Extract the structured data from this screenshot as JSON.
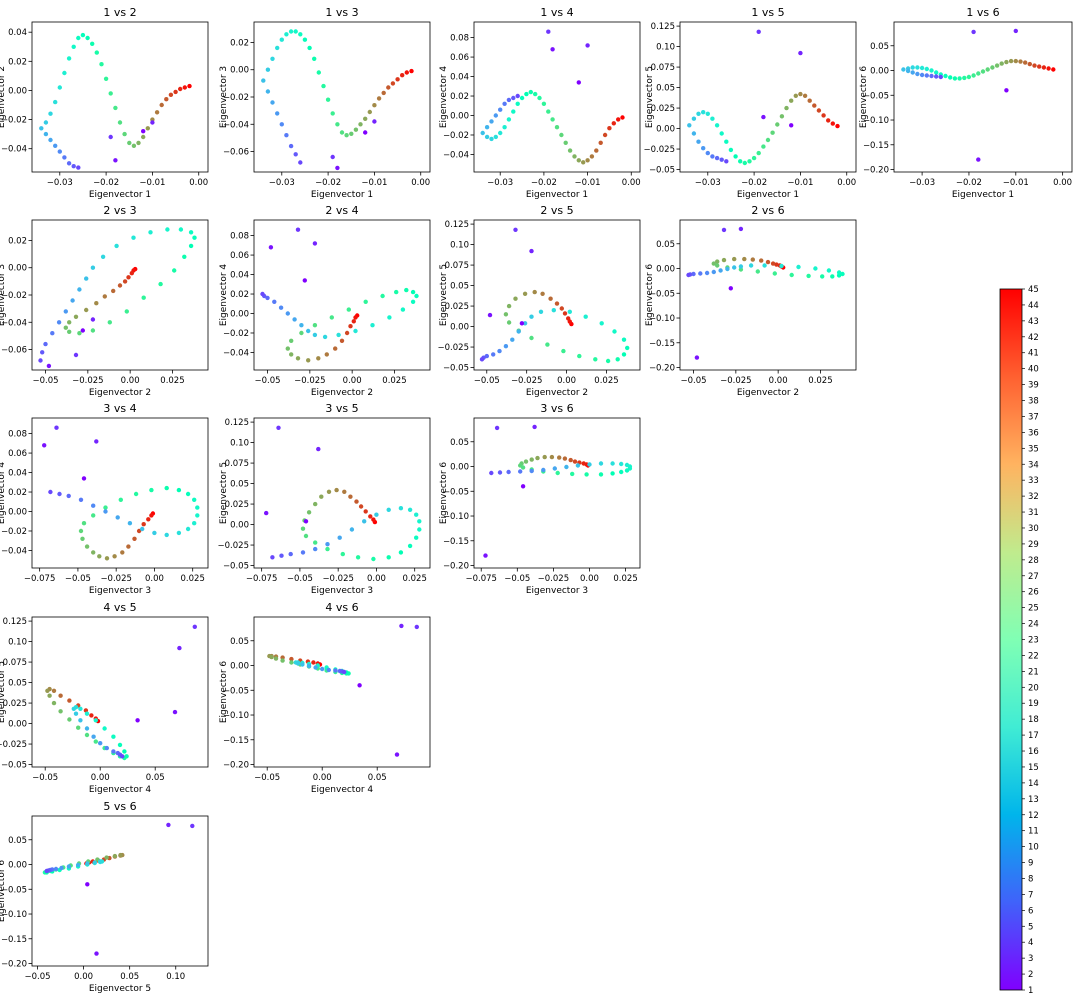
{
  "colors": {
    "colormap": "rainbow",
    "low": "#8000ff",
    "high": "#ff0000"
  },
  "colorbar": {
    "min": 1,
    "max": 45,
    "ticks": [
      1,
      2,
      3,
      4,
      5,
      6,
      7,
      8,
      9,
      10,
      11,
      12,
      13,
      14,
      15,
      16,
      17,
      18,
      19,
      20,
      21,
      22,
      23,
      24,
      25,
      26,
      27,
      28,
      29,
      30,
      31,
      32,
      33,
      34,
      35,
      36,
      37,
      38,
      39,
      40,
      41,
      42,
      43,
      44,
      45
    ]
  },
  "axes_info": [
    {
      "title": "1 vs 2",
      "xlabel": "Eigenvector 1",
      "ylabel": "Eigenvector 2",
      "xlim": [
        -0.036,
        0.002
      ],
      "ylim": [
        -0.056,
        0.047
      ],
      "xticks": [
        -0.03,
        -0.02,
        -0.01,
        0.0
      ],
      "yticks": [
        -0.04,
        -0.02,
        0.0,
        0.02,
        0.04
      ]
    },
    {
      "title": "1 vs 3",
      "xlabel": "Eigenvector 1",
      "ylabel": "Eigenvector 3",
      "xlim": [
        -0.036,
        0.002
      ],
      "ylim": [
        -0.075,
        0.035
      ],
      "xticks": [
        -0.03,
        -0.02,
        -0.01,
        0.0
      ],
      "yticks": [
        -0.06,
        -0.04,
        -0.02,
        0.0,
        0.02
      ]
    },
    {
      "title": "1 vs 4",
      "xlabel": "Eigenvector 1",
      "ylabel": "Eigenvector 4",
      "xlim": [
        -0.036,
        0.002
      ],
      "ylim": [
        -0.058,
        0.096
      ],
      "xticks": [
        -0.03,
        -0.02,
        -0.01,
        0.0
      ],
      "yticks": [
        -0.04,
        -0.02,
        0.0,
        0.02,
        0.04,
        0.06,
        0.08
      ]
    },
    {
      "title": "1 vs 5",
      "xlabel": "Eigenvector 1",
      "ylabel": "Eigenvector 5",
      "xlim": [
        -0.036,
        0.002
      ],
      "ylim": [
        -0.053,
        0.13
      ],
      "xticks": [
        -0.03,
        -0.02,
        -0.01,
        0.0
      ],
      "yticks": [
        -0.05,
        -0.025,
        0.0,
        0.025,
        0.05,
        0.075,
        0.1,
        0.125
      ]
    },
    {
      "title": "1 vs 6",
      "xlabel": "Eigenvector 1",
      "ylabel": "Eigenvector 6",
      "xlim": [
        -0.036,
        0.002
      ],
      "ylim": [
        -0.205,
        0.098
      ],
      "xticks": [
        -0.03,
        -0.02,
        -0.01,
        0.0
      ],
      "yticks": [
        -0.2,
        -0.15,
        -0.1,
        -0.05,
        0.0,
        0.05
      ]
    },
    {
      "title": "2 vs 3",
      "xlabel": "Eigenvector 2",
      "ylabel": "Eigenvector 3",
      "xlim": [
        -0.058,
        0.046
      ],
      "ylim": [
        -0.075,
        0.035
      ],
      "xticks": [
        -0.05,
        -0.025,
        0.0,
        0.025
      ],
      "yticks": [
        -0.06,
        -0.04,
        -0.02,
        0.0,
        0.02
      ]
    },
    {
      "title": "2 vs 4",
      "xlabel": "Eigenvector 2",
      "ylabel": "Eigenvector 4",
      "xlim": [
        -0.058,
        0.046
      ],
      "ylim": [
        -0.058,
        0.096
      ],
      "xticks": [
        -0.05,
        -0.025,
        0.0,
        0.025
      ],
      "yticks": [
        -0.04,
        -0.02,
        0.0,
        0.02,
        0.04,
        0.06,
        0.08
      ]
    },
    {
      "title": "2 vs 5",
      "xlabel": "Eigenvector 2",
      "ylabel": "Eigenvector 5",
      "xlim": [
        -0.058,
        0.046
      ],
      "ylim": [
        -0.053,
        0.13
      ],
      "xticks": [
        -0.05,
        -0.025,
        0.0,
        0.025
      ],
      "yticks": [
        -0.05,
        -0.025,
        0.0,
        0.025,
        0.05,
        0.075,
        0.1,
        0.125
      ]
    },
    {
      "title": "2 vs 6",
      "xlabel": "Eigenvector 2",
      "ylabel": "Eigenvector 6",
      "xlim": [
        -0.058,
        0.046
      ],
      "ylim": [
        -0.205,
        0.098
      ],
      "xticks": [
        -0.05,
        -0.025,
        0.0,
        0.025
      ],
      "yticks": [
        -0.2,
        -0.15,
        -0.1,
        -0.05,
        0.0,
        0.05
      ]
    },
    {
      "title": "3 vs 4",
      "xlabel": "Eigenvector 3",
      "ylabel": "Eigenvector 4",
      "xlim": [
        -0.08,
        0.035
      ],
      "ylim": [
        -0.058,
        0.096
      ],
      "xticks": [
        -0.075,
        -0.05,
        -0.025,
        0.0,
        0.025
      ],
      "yticks": [
        -0.04,
        -0.02,
        0.0,
        0.02,
        0.04,
        0.06,
        0.08
      ]
    },
    {
      "title": "3 vs 5",
      "xlabel": "Eigenvector 3",
      "ylabel": "Eigenvector 5",
      "xlim": [
        -0.08,
        0.035
      ],
      "ylim": [
        -0.053,
        0.13
      ],
      "xticks": [
        -0.075,
        -0.05,
        -0.025,
        0.0,
        0.025
      ],
      "yticks": [
        -0.05,
        -0.025,
        0.0,
        0.025,
        0.05,
        0.075,
        0.1,
        0.125
      ]
    },
    {
      "title": "3 vs 6",
      "xlabel": "Eigenvector 3",
      "ylabel": "Eigenvector 6",
      "xlim": [
        -0.08,
        0.035
      ],
      "ylim": [
        -0.205,
        0.098
      ],
      "xticks": [
        -0.075,
        -0.05,
        -0.025,
        0.0,
        0.025
      ],
      "yticks": [
        -0.2,
        -0.15,
        -0.1,
        -0.05,
        0.0,
        0.05
      ]
    },
    {
      "title": "4 vs 5",
      "xlabel": "Eigenvector 4",
      "ylabel": "Eigenvector 5",
      "xlim": [
        -0.062,
        0.098
      ],
      "ylim": [
        -0.053,
        0.13
      ],
      "xticks": [
        -0.05,
        0.0,
        0.05
      ],
      "yticks": [
        -0.05,
        -0.025,
        0.0,
        0.025,
        0.05,
        0.075,
        0.1,
        0.125
      ]
    },
    {
      "title": "4 vs 6",
      "xlabel": "Eigenvector 4",
      "ylabel": "Eigenvector 6",
      "xlim": [
        -0.062,
        0.098
      ],
      "ylim": [
        -0.205,
        0.098
      ],
      "xticks": [
        -0.05,
        0.0,
        0.05
      ],
      "yticks": [
        -0.2,
        -0.15,
        -0.1,
        -0.05,
        0.0,
        0.05
      ]
    },
    {
      "title": "5 vs 6",
      "xlabel": "Eigenvector 5",
      "ylabel": "Eigenvector 6",
      "xlim": [
        -0.056,
        0.135
      ],
      "ylim": [
        -0.205,
        0.098
      ],
      "xticks": [
        -0.05,
        0.0,
        0.05,
        0.1
      ],
      "yticks": [
        -0.2,
        -0.15,
        -0.1,
        -0.05,
        0.0,
        0.05
      ]
    }
  ],
  "chart_data": {
    "type": "scatter",
    "variables": [
      "Eigenvector 1",
      "Eigenvector 2",
      "Eigenvector 3",
      "Eigenvector 4",
      "Eigenvector 5",
      "Eigenvector 6"
    ],
    "color_variable_range": [
      1,
      45
    ],
    "note_points": "Each point is [e1, e2, e3, e4, e5, e6, color]; approximate representative samples read from the panels.",
    "points": [
      [
        -0.002,
        0.003,
        -0.001,
        -0.002,
        0.003,
        0.002,
        45
      ],
      [
        -0.003,
        0.002,
        -0.002,
        -0.004,
        0.006,
        0.004,
        44
      ],
      [
        -0.004,
        0.001,
        -0.004,
        -0.008,
        0.01,
        0.006,
        43
      ],
      [
        -0.005,
        -0.001,
        -0.007,
        -0.013,
        0.016,
        0.008,
        42
      ],
      [
        -0.006,
        -0.003,
        -0.01,
        -0.02,
        0.022,
        0.01,
        41
      ],
      [
        -0.007,
        -0.006,
        -0.013,
        -0.028,
        0.028,
        0.013,
        40
      ],
      [
        -0.008,
        -0.01,
        -0.017,
        -0.036,
        0.034,
        0.016,
        39
      ],
      [
        -0.009,
        -0.015,
        -0.021,
        -0.042,
        0.04,
        0.018,
        38
      ],
      [
        -0.01,
        -0.02,
        -0.026,
        -0.046,
        0.042,
        0.019,
        37
      ],
      [
        -0.011,
        -0.026,
        -0.031,
        -0.048,
        0.04,
        0.019,
        36
      ],
      [
        -0.012,
        -0.032,
        -0.036,
        -0.046,
        0.034,
        0.017,
        35
      ],
      [
        -0.013,
        -0.036,
        -0.04,
        -0.042,
        0.025,
        0.014,
        34
      ],
      [
        -0.014,
        -0.038,
        -0.044,
        -0.036,
        0.015,
        0.01,
        33
      ],
      [
        -0.015,
        -0.036,
        -0.047,
        -0.028,
        0.005,
        0.006,
        32
      ],
      [
        -0.016,
        -0.03,
        -0.048,
        -0.02,
        -0.005,
        0.002,
        31
      ],
      [
        -0.017,
        -0.022,
        -0.046,
        -0.012,
        -0.014,
        -0.002,
        30
      ],
      [
        -0.018,
        -0.012,
        -0.04,
        -0.004,
        -0.022,
        -0.006,
        29
      ],
      [
        -0.019,
        -0.002,
        -0.032,
        0.004,
        -0.03,
        -0.01,
        28
      ],
      [
        -0.02,
        0.008,
        -0.022,
        0.012,
        -0.036,
        -0.013,
        27
      ],
      [
        -0.021,
        0.018,
        -0.012,
        0.018,
        -0.04,
        -0.015,
        26
      ],
      [
        -0.022,
        0.026,
        -0.002,
        0.022,
        -0.042,
        -0.016,
        25
      ],
      [
        -0.023,
        0.032,
        0.008,
        0.024,
        -0.04,
        -0.016,
        24
      ],
      [
        -0.024,
        0.036,
        0.016,
        0.022,
        -0.034,
        -0.014,
        23
      ],
      [
        -0.025,
        0.038,
        0.022,
        0.018,
        -0.026,
        -0.011,
        22
      ],
      [
        -0.026,
        0.036,
        0.026,
        0.012,
        -0.016,
        -0.008,
        21
      ],
      [
        -0.027,
        0.03,
        0.028,
        0.004,
        -0.006,
        -0.004,
        20
      ],
      [
        -0.028,
        0.022,
        0.028,
        -0.004,
        0.004,
        0.0,
        19
      ],
      [
        -0.029,
        0.012,
        0.026,
        -0.012,
        0.012,
        0.003,
        18
      ],
      [
        -0.03,
        0.002,
        0.022,
        -0.018,
        0.018,
        0.005,
        17
      ],
      [
        -0.031,
        -0.008,
        0.016,
        -0.022,
        0.02,
        0.006,
        16
      ],
      [
        -0.032,
        -0.016,
        0.008,
        -0.024,
        0.018,
        0.006,
        15
      ],
      [
        -0.033,
        -0.022,
        0.0,
        -0.022,
        0.012,
        0.004,
        14
      ],
      [
        -0.034,
        -0.026,
        -0.008,
        -0.018,
        0.004,
        0.002,
        13
      ],
      [
        -0.033,
        -0.03,
        -0.016,
        -0.012,
        -0.006,
        -0.001,
        12
      ],
      [
        -0.032,
        -0.034,
        -0.024,
        -0.006,
        -0.016,
        -0.004,
        11
      ],
      [
        -0.031,
        -0.038,
        -0.032,
        0.0,
        -0.024,
        -0.007,
        10
      ],
      [
        -0.03,
        -0.042,
        -0.04,
        0.006,
        -0.03,
        -0.009,
        9
      ],
      [
        -0.029,
        -0.046,
        -0.048,
        0.012,
        -0.034,
        -0.01,
        8
      ],
      [
        -0.028,
        -0.05,
        -0.056,
        0.016,
        -0.036,
        -0.011,
        7
      ],
      [
        -0.027,
        -0.052,
        -0.062,
        0.018,
        -0.038,
        -0.012,
        6
      ],
      [
        -0.026,
        -0.053,
        -0.068,
        0.02,
        -0.04,
        -0.013,
        5
      ],
      [
        -0.019,
        -0.032,
        -0.064,
        0.086,
        0.118,
        0.078,
        4
      ],
      [
        -0.01,
        -0.022,
        -0.038,
        0.072,
        0.092,
        0.08,
        3
      ],
      [
        -0.018,
        -0.048,
        -0.072,
        0.068,
        0.014,
        -0.18,
        2
      ],
      [
        -0.012,
        -0.028,
        -0.046,
        0.034,
        0.004,
        -0.04,
        1
      ]
    ]
  }
}
